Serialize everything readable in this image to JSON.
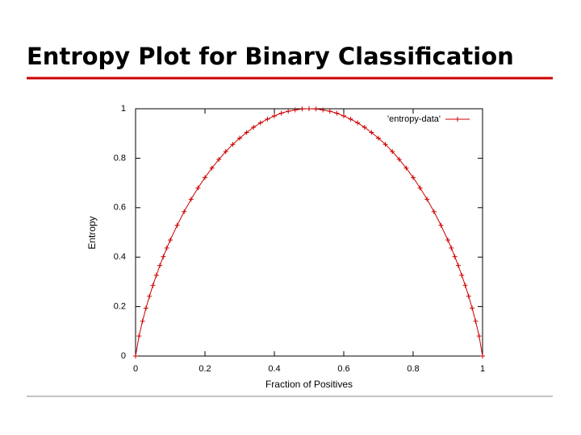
{
  "chart_data": {
    "type": "line",
    "title": "Entropy Plot for Binary Classification",
    "x_label": "Fraction of Positives",
    "y_label": "Entropy",
    "x": [
      0,
      0.01,
      0.02,
      0.03,
      0.04,
      0.05,
      0.06,
      0.07,
      0.08,
      0.09,
      0.1,
      0.12,
      0.14,
      0.16,
      0.18,
      0.2,
      0.22,
      0.24,
      0.26,
      0.28,
      0.3,
      0.32,
      0.34,
      0.36,
      0.38,
      0.4,
      0.42,
      0.44,
      0.46,
      0.48,
      0.5,
      0.52,
      0.54,
      0.56,
      0.58,
      0.6,
      0.62,
      0.64,
      0.66,
      0.68,
      0.7,
      0.72,
      0.74,
      0.76,
      0.78,
      0.8,
      0.82,
      0.84,
      0.86,
      0.88,
      0.9,
      0.91,
      0.92,
      0.93,
      0.94,
      0.95,
      0.96,
      0.97,
      0.98,
      0.99,
      1
    ],
    "series": [
      {
        "name": "'entropy-data'",
        "color": "#cc0000",
        "values": [
          0,
          0.081,
          0.141,
          0.194,
          0.242,
          0.286,
          0.327,
          0.366,
          0.402,
          0.437,
          0.469,
          0.529,
          0.584,
          0.634,
          0.68,
          0.722,
          0.76,
          0.795,
          0.827,
          0.856,
          0.881,
          0.904,
          0.925,
          0.943,
          0.958,
          0.971,
          0.982,
          0.99,
          0.995,
          0.999,
          1,
          0.999,
          0.995,
          0.99,
          0.982,
          0.971,
          0.958,
          0.943,
          0.925,
          0.904,
          0.881,
          0.856,
          0.827,
          0.795,
          0.76,
          0.722,
          0.68,
          0.634,
          0.584,
          0.529,
          0.469,
          0.437,
          0.402,
          0.366,
          0.327,
          0.286,
          0.242,
          0.194,
          0.141,
          0.081,
          0
        ]
      }
    ],
    "xlim": [
      0,
      1
    ],
    "ylim": [
      0,
      1
    ],
    "xticks": [
      0,
      0.2,
      0.4,
      0.6,
      0.8,
      1
    ],
    "yticks": [
      0,
      0.2,
      0.4,
      0.6,
      0.8,
      1
    ],
    "legend": "upper right"
  }
}
